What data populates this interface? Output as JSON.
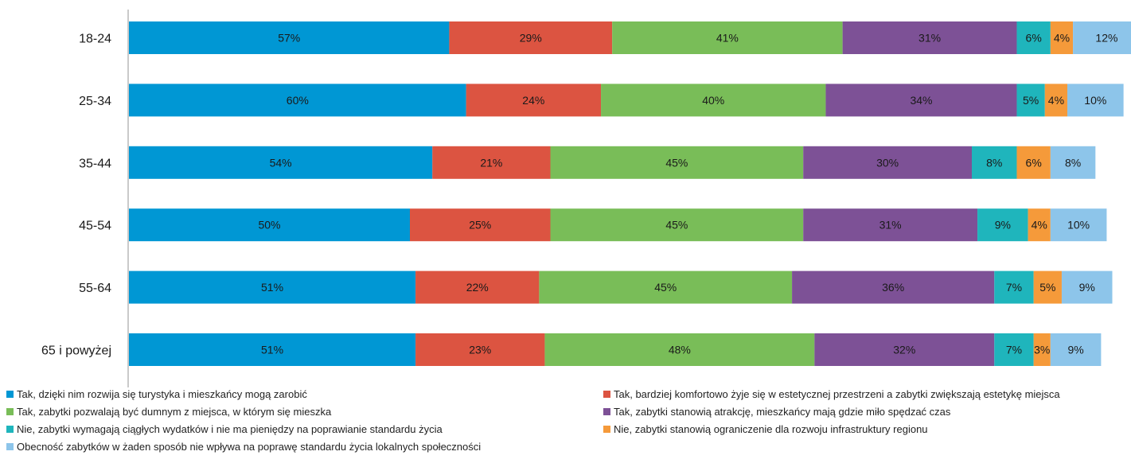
{
  "chart_data": {
    "type": "bar",
    "orientation": "horizontal",
    "stacked": true,
    "categories": [
      "18-24",
      "25-34",
      "35-44",
      "45-54",
      "55-64",
      "65 i powyżej"
    ],
    "series": [
      {
        "name": "Tak, dzięki nim rozwija się turystyka i mieszkańcy mogą zarobić",
        "color": "#0097d4",
        "values": [
          57,
          60,
          54,
          50,
          51,
          51
        ]
      },
      {
        "name": "Tak, bardziej komfortowo żyje się w estetycznej przestrzeni a zabytki zwiększają estetykę miejsca",
        "color": "#dc5441",
        "values": [
          29,
          24,
          21,
          25,
          22,
          23
        ]
      },
      {
        "name": "Tak, zabytki pozwalają być dumnym z miejsca, w którym się mieszka",
        "color": "#79bd58",
        "values": [
          41,
          40,
          45,
          45,
          45,
          48
        ]
      },
      {
        "name": "Tak, zabytki stanowią atrakcję, mieszkańcy mają gdzie miło spędzać czas",
        "color": "#7d5196",
        "values": [
          31,
          34,
          30,
          31,
          36,
          32
        ]
      },
      {
        "name": "Nie, zabytki wymagają ciągłych wydatków i nie ma pieniędzy na poprawianie standardu życia",
        "color": "#1fb5bc",
        "values": [
          6,
          5,
          8,
          9,
          7,
          7
        ]
      },
      {
        "name": "Nie, zabytki stanowią ograniczenie dla rozwoju infrastruktury regionu",
        "color": "#f59a3a",
        "values": [
          4,
          4,
          6,
          4,
          5,
          3
        ]
      },
      {
        "name": "Obecność zabytków w żaden sposób nie wpływa na poprawę standardu życia lokalnych społeczności",
        "color": "#8dc5ea",
        "values": [
          12,
          10,
          8,
          10,
          9,
          9
        ]
      }
    ],
    "value_suffix": "%",
    "xlim": [
      0,
      180
    ],
    "grid": false,
    "legend_position": "bottom"
  }
}
